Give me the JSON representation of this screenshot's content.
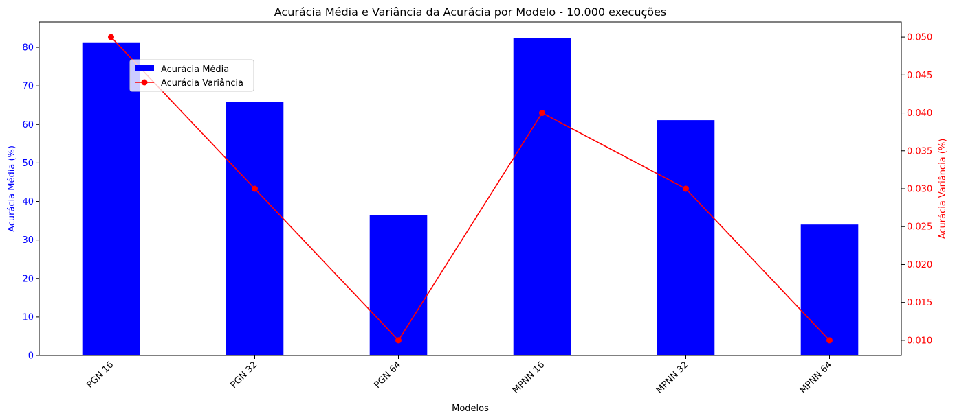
{
  "chart_data": {
    "type": "bar",
    "title": "Acurácia Média e Variância da Acurácia por Modelo - 10.000 execuções",
    "xlabel": "Modelos",
    "categories": [
      "PGN 16",
      "PGN 32",
      "PGN 64",
      "MPNN 16",
      "MPNN 32",
      "MPNN 64"
    ],
    "series": [
      {
        "name": "Acurácia Média",
        "kind": "bar",
        "axis": "left",
        "color": "#0000ff",
        "values": [
          81.3,
          65.8,
          36.5,
          82.5,
          61.1,
          34.0
        ]
      },
      {
        "name": "Acurácia Variância",
        "kind": "line",
        "axis": "right",
        "color": "#ff0000",
        "values": [
          0.05,
          0.03,
          0.01,
          0.04,
          0.03,
          0.01
        ]
      }
    ],
    "y_left": {
      "label": "Acurácia Média (%)",
      "color": "#0000ff",
      "ylim": [
        0,
        86.6
      ],
      "ticks": [
        0,
        10,
        20,
        30,
        40,
        50,
        60,
        70,
        80
      ],
      "tick_labels": [
        "0",
        "10",
        "20",
        "30",
        "40",
        "50",
        "60",
        "70",
        "80"
      ]
    },
    "y_right": {
      "label": "Acurácia Variância (%)",
      "color": "#ff0000",
      "ylim": [
        0.008,
        0.052
      ],
      "ticks": [
        0.01,
        0.015,
        0.02,
        0.025,
        0.03,
        0.035,
        0.04,
        0.045,
        0.05
      ],
      "tick_labels": [
        "0.010",
        "0.015",
        "0.020",
        "0.025",
        "0.030",
        "0.035",
        "0.040",
        "0.045",
        "0.050"
      ]
    },
    "x_tick_rotation": 45,
    "grid": false,
    "legend_position": "upper-left"
  }
}
